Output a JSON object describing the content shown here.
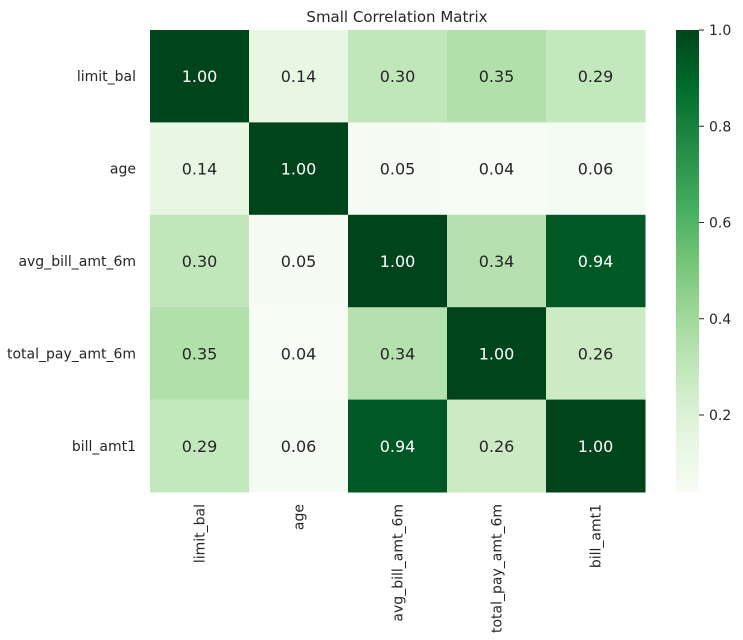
{
  "chart_data": {
    "type": "heatmap",
    "title": "Small Correlation Matrix",
    "xlabel": "",
    "ylabel": "",
    "row_labels": [
      "limit_bal",
      "age",
      "avg_bill_amt_6m",
      "total_pay_amt_6m",
      "bill_amt1"
    ],
    "col_labels": [
      "limit_bal",
      "age",
      "avg_bill_amt_6m",
      "total_pay_amt_6m",
      "bill_amt1"
    ],
    "values": [
      [
        1.0,
        0.14,
        0.3,
        0.35,
        0.29
      ],
      [
        0.14,
        1.0,
        0.05,
        0.04,
        0.06
      ],
      [
        0.3,
        0.05,
        1.0,
        0.34,
        0.94
      ],
      [
        0.35,
        0.04,
        0.34,
        1.0,
        0.26
      ],
      [
        0.29,
        0.06,
        0.94,
        0.26,
        1.0
      ]
    ],
    "value_format": "0.00",
    "colormap": "Greens",
    "colorbar": {
      "range": [
        0.04,
        1.0
      ],
      "ticks": [
        0.2,
        0.4,
        0.6,
        0.8,
        1.0
      ],
      "tick_labels": [
        "0.2",
        "0.4",
        "0.6",
        "0.8",
        "1.0"
      ]
    }
  },
  "colors": {
    "greens_stops": [
      "#f7fcf5",
      "#e5f5e0",
      "#c7e9c0",
      "#a1d99b",
      "#74c476",
      "#41ab5d",
      "#238b45",
      "#006d2c",
      "#00441b"
    ],
    "text_dark": "#262626",
    "text_light": "#ffffff"
  }
}
